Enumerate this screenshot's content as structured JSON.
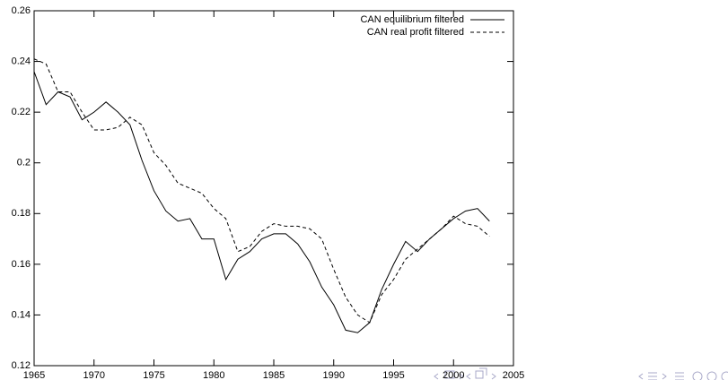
{
  "chart_data": {
    "type": "line",
    "x": [
      1965,
      1966,
      1967,
      1968,
      1969,
      1970,
      1971,
      1972,
      1973,
      1974,
      1975,
      1976,
      1977,
      1978,
      1979,
      1980,
      1981,
      1982,
      1983,
      1984,
      1985,
      1986,
      1987,
      1988,
      1989,
      1990,
      1991,
      1992,
      1993,
      1994,
      1995,
      1996,
      1997,
      1998,
      1999,
      2000,
      2001,
      2002,
      2003
    ],
    "series": [
      {
        "name": "CAN equilibrium filtered",
        "color": "#000000",
        "line_style": "solid",
        "values": [
          0.236,
          0.223,
          0.228,
          0.226,
          0.217,
          0.22,
          0.224,
          0.22,
          0.215,
          0.201,
          0.189,
          0.181,
          0.177,
          0.178,
          0.17,
          0.17,
          0.154,
          0.162,
          0.165,
          0.17,
          0.172,
          0.172,
          0.168,
          0.161,
          0.151,
          0.144,
          0.134,
          0.133,
          0.137,
          0.15,
          0.16,
          0.169,
          0.165,
          0.17,
          0.174,
          0.178,
          0.181,
          0.182,
          0.177
        ]
      },
      {
        "name": "CAN real profit filtered",
        "color": "#000000",
        "line_style": "dashed",
        "values": [
          0.241,
          0.239,
          0.228,
          0.228,
          0.22,
          0.213,
          0.213,
          0.214,
          0.218,
          0.215,
          0.204,
          0.199,
          0.192,
          0.19,
          0.188,
          0.182,
          0.178,
          0.165,
          0.167,
          0.173,
          0.176,
          0.175,
          0.175,
          0.174,
          0.17,
          0.158,
          0.147,
          0.14,
          0.137,
          0.148,
          0.154,
          0.162,
          0.166,
          0.17,
          0.174,
          0.179,
          0.176,
          0.175,
          0.171
        ]
      }
    ],
    "xlim": [
      1965,
      2005
    ],
    "xticks": [
      1965,
      1970,
      1975,
      1980,
      1985,
      1990,
      1995,
      2000,
      2005
    ],
    "ylim": [
      0.12,
      0.26
    ],
    "yticks": [
      0.12,
      0.14,
      0.16,
      0.18,
      0.2,
      0.22,
      0.24,
      0.26
    ],
    "legend": "top-right"
  }
}
